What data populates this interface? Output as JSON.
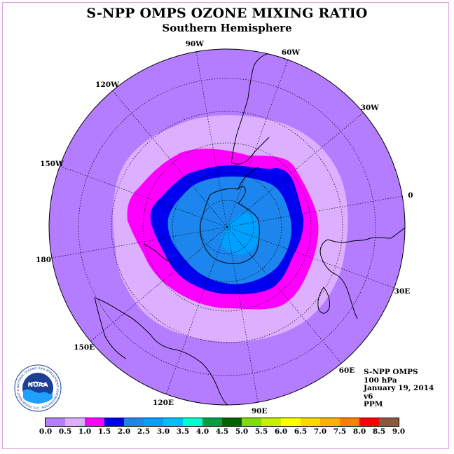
{
  "header": {
    "title": "S-NPP OMPS OZONE MIXING RATIO",
    "subtitle": "Southern Hemisphere"
  },
  "info": {
    "lines": [
      "S-NPP OMPS",
      "100 hPa",
      "January 19, 2014",
      "v6",
      "PPM"
    ]
  },
  "logo": {
    "text": "NOAA",
    "ring_text": "NATIONAL OCEANIC AND ATMOSPHERIC ADMINISTRATION · U.S. DEPARTMENT OF COMMERCE"
  },
  "map": {
    "projection": "south-polar-stereographic",
    "longitude_labels": [
      "90W",
      "60W",
      "30W",
      "0",
      "30E",
      "60E",
      "90E",
      "120E",
      "150E",
      "180",
      "150W",
      "120W"
    ],
    "colors": {
      "ocean_land_background": "#b47cff",
      "contour_0_5": "#ddb0ff",
      "contour_1_0": "#ff00ff",
      "contour_1_5": "#0000ee",
      "contour_2_0": "#1c86ee",
      "contour_2_5": "#00a0ff",
      "coastline": "#000000",
      "graticule": "#000000"
    }
  },
  "colorbar": {
    "colors": [
      "#b47cff",
      "#ddb0ff",
      "#ff00ff",
      "#0000ee",
      "#1c86ee",
      "#00a0ff",
      "#00bfff",
      "#00ffcc",
      "#00a040",
      "#006400",
      "#7fdd00",
      "#c8f000",
      "#ffff00",
      "#ffd700",
      "#ffb000",
      "#ff7f00",
      "#ff0000",
      "#8b5a3c"
    ],
    "ticks": [
      "0.0",
      "0.5",
      "1.0",
      "1.5",
      "2.0",
      "2.5",
      "3.0",
      "3.5",
      "4.0",
      "4.5",
      "5.0",
      "5.5",
      "6.0",
      "6.5",
      "7.0",
      "7.5",
      "8.0",
      "8.5",
      "9.0"
    ]
  }
}
